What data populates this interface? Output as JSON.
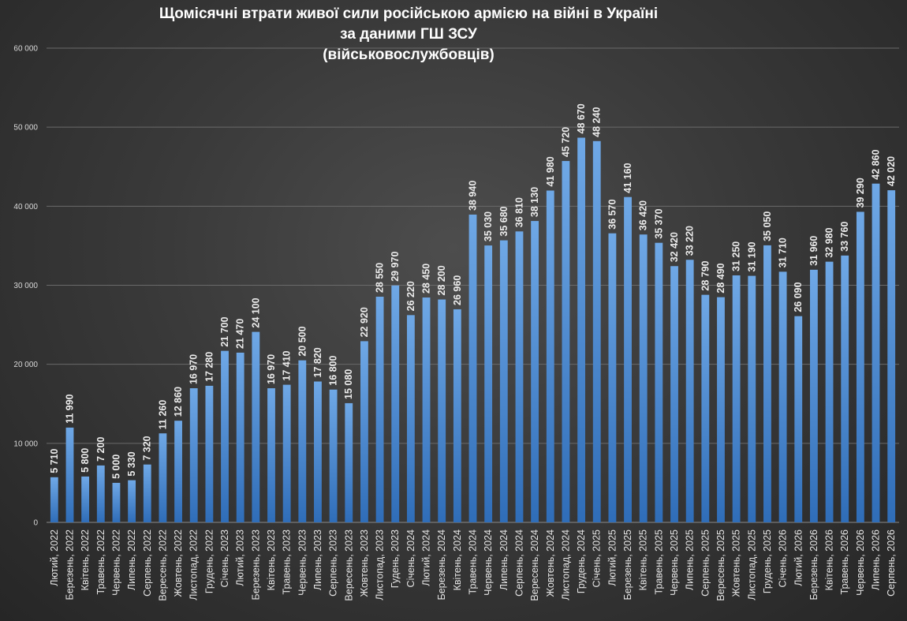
{
  "colors": {
    "bar_top": "#6fa8e6",
    "bar_bottom": "#2f6db8",
    "text": "#ffffff",
    "grid": "#6a6a6a"
  },
  "chart_data": {
    "type": "bar",
    "title_lines": [
      "Щомісячні  втрати живої сили російською  армією  на війні  в Україні",
      "за даними  ГШ ЗСУ",
      "(військовослужбовців)"
    ],
    "xlabel": "",
    "ylabel": "",
    "ylim": [
      0,
      60000
    ],
    "yticks": [
      0,
      10000,
      20000,
      30000,
      40000,
      50000,
      60000
    ],
    "ytick_labels": [
      "0",
      "10 000",
      "20 000",
      "30 000",
      "40 000",
      "50 000",
      "60 000"
    ],
    "grid": true,
    "legend": "none",
    "categories": [
      "Лютий, 2022",
      "Березень, 2022",
      "Квітень, 2022",
      "Травень, 2022",
      "Червень, 2022",
      "Липень, 2022",
      "Серпень, 2022",
      "Вересень, 2022",
      "Жовтень, 2022",
      "Листопад, 2022",
      "Грудень, 2022",
      "Січень, 2023",
      "Лютий, 2023",
      "Березень, 2023",
      "Квітень, 2023",
      "Травень, 2023",
      "Червень, 2023",
      "Липень, 2023",
      "Серпень, 2023",
      "Вересень, 2023",
      "Жовтень, 2023",
      "Листопад, 2023",
      "Гудень, 2023",
      "Січень, 2024",
      "Лютий, 2024",
      "Березень, 2024",
      "Квітень, 2024",
      "Травень, 2024",
      "Червень, 2024",
      "Липень, 2024",
      "Серпень, 2024",
      "Вересень, 2024",
      "Жовтень, 2024",
      "Листопад, 2024",
      "Грудень, 2024",
      "Січень, 2025",
      "Лютий, 2025",
      "Березень, 2025",
      "Квітень, 2025",
      "Травень, 2025",
      "Червень, 2025",
      "Липень, 2025",
      "Серпень, 2025",
      "Вересень, 2025",
      "Жовтень, 2025",
      "Листопад, 2025",
      "Грудень, 2025",
      "Січень, 2026",
      "Лютий, 2026",
      "Березень, 2026",
      "Квітень, 2026",
      "Травень, 2026",
      "Червень, 2026",
      "Липень, 2026",
      "Серпень, 2026"
    ],
    "values": [
      5710,
      11990,
      5800,
      7200,
      5000,
      5330,
      7320,
      11260,
      12860,
      16970,
      17280,
      21700,
      21470,
      24100,
      16970,
      17410,
      20500,
      17820,
      16800,
      15080,
      22920,
      28550,
      29970,
      26220,
      28450,
      28200,
      26960,
      38940,
      35030,
      35680,
      36810,
      38130,
      41980,
      45720,
      48670,
      48240,
      36570,
      41160,
      36420,
      35370,
      32420,
      33220,
      28790,
      28490,
      31250,
      31190,
      35050,
      31710,
      26090,
      31960,
      32980,
      33760,
      39290,
      42860,
      42020
    ],
    "data_labels": [
      "5 710",
      "11 990",
      "5 800",
      "7 200",
      "5 000",
      "5 330",
      "7 320",
      "11 260",
      "12 860",
      "16 970",
      "17 280",
      "21 700",
      "21 470",
      "24 100",
      "16 970",
      "17 410",
      "20 500",
      "17 820",
      "16 800",
      "15 080",
      "22 920",
      "28 550",
      "29 970",
      "26 220",
      "28 450",
      "28 200",
      "26 960",
      "38 940",
      "35 030",
      "35 680",
      "36 810",
      "38 130",
      "41 980",
      "45 720",
      "48 670",
      "48 240",
      "36 570",
      "41 160",
      "36 420",
      "35 370",
      "32 420",
      "33 220",
      "28 790",
      "28 490",
      "31 250",
      "31 190",
      "35 050",
      "31 710",
      "26 090",
      "31 960",
      "32 980",
      "33 760",
      "39 290",
      "42 860",
      "42 020"
    ]
  }
}
